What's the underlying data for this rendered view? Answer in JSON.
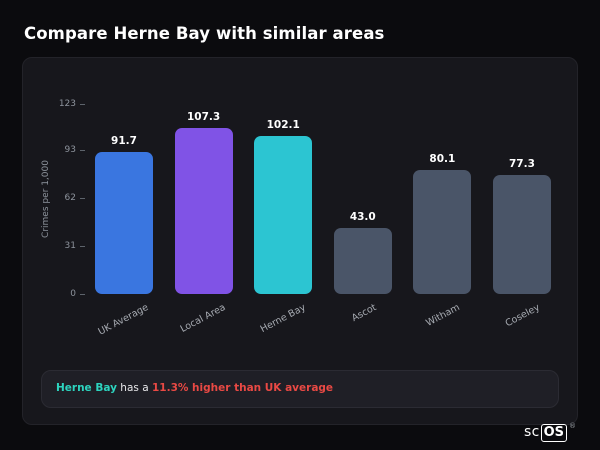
{
  "page": {
    "title": "Compare Herne Bay with similar areas"
  },
  "chart_data": {
    "type": "bar",
    "title": "Compare Herne Bay with similar areas",
    "xlabel": "",
    "ylabel": "Crimes per 1,000",
    "categories": [
      "UK Average",
      "Local Area",
      "Herne Bay",
      "Ascot",
      "Witham",
      "Coseley"
    ],
    "values": [
      91.7,
      107.3,
      102.1,
      43.0,
      80.1,
      77.3
    ],
    "value_labels": [
      "91.7",
      "107.3",
      "102.1",
      "43.0",
      "80.1",
      "77.3"
    ],
    "bar_colors": [
      "#3a76e0",
      "#8053e6",
      "#2cc5d2",
      "#4a5568",
      "#4a5568",
      "#4a5568"
    ],
    "yticks": [
      0,
      31,
      62,
      93,
      123
    ],
    "ylim": [
      0,
      123
    ],
    "grid": false,
    "legend": false
  },
  "note": {
    "area_label": "Herne Bay",
    "middle_text": " has a ",
    "highlight_text": "11.3% higher than UK average",
    "area_color": "#2dd4bf",
    "highlight_color": "#e94944"
  },
  "branding": {
    "sc": "sc",
    "os": "OS",
    "registered": "®"
  }
}
